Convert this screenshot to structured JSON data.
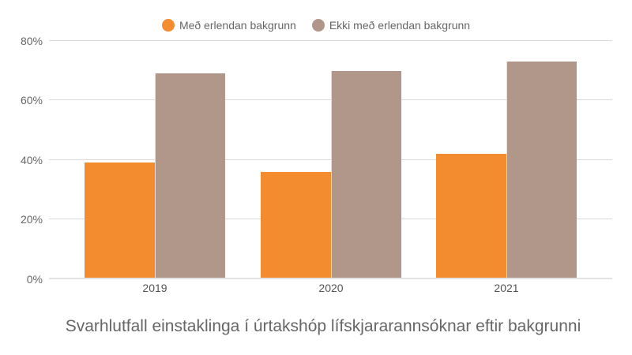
{
  "legend": {
    "items": [
      {
        "label": "Með erlendan bakgrunn",
        "color": "#f28c2f"
      },
      {
        "label": "Ekki með erlendan bakgrunn",
        "color": "#b0978a"
      }
    ]
  },
  "axis": {
    "y_ticks": [
      "0%",
      "20%",
      "40%",
      "60%",
      "80%"
    ],
    "x_ticks": [
      "2019",
      "2020",
      "2021"
    ]
  },
  "title": "Svarhlutfall einstaklinga í úrtakshóp lífskjararannsóknar eftir bakgrunni",
  "chart_data": {
    "type": "bar",
    "title": "Svarhlutfall einstaklinga í úrtakshóp lífskjararannsóknar eftir bakgrunni",
    "xlabel": "",
    "ylabel": "",
    "categories": [
      "2019",
      "2020",
      "2021"
    ],
    "series": [
      {
        "name": "Með erlendan bakgrunn",
        "color": "#f28c2f",
        "values": [
          39,
          36,
          42
        ]
      },
      {
        "name": "Ekki með erlendan bakgrunn",
        "color": "#b0978a",
        "values": [
          69,
          70,
          73
        ]
      }
    ],
    "ylim": [
      0,
      80
    ],
    "y_ticks": [
      0,
      20,
      40,
      60,
      80
    ],
    "y_format": "percent",
    "grid": true,
    "legend_position": "top"
  }
}
